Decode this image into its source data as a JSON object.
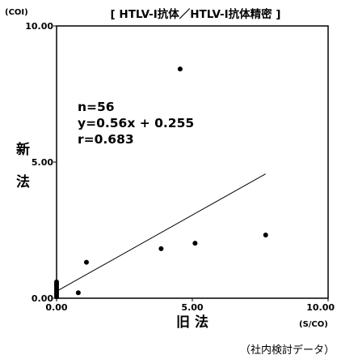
{
  "chart_data": {
    "type": "scatter",
    "title": "[ HTLV-I抗体／HTLV-I抗体精密 ]",
    "xlabel": "旧 法",
    "ylabel": "新\n法",
    "x_unit": "(S/CO)",
    "y_unit": "(COI)",
    "xlim": [
      0,
      10
    ],
    "ylim": [
      0,
      10
    ],
    "x_ticks": [
      "0.00",
      "5.00",
      "10.00"
    ],
    "y_ticks": [
      "0.00",
      "5.00",
      "10.00"
    ],
    "grid": false,
    "annotations": [
      "n=56",
      "y=0.56x + 0.255",
      "r=0.683"
    ],
    "regression": {
      "slope": 0.56,
      "intercept": 0.255,
      "x_range": [
        0,
        7.7
      ]
    },
    "series": [
      {
        "points": [
          {
            "x": 4.55,
            "y": 8.42
          },
          {
            "x": 7.7,
            "y": 2.32
          },
          {
            "x": 5.1,
            "y": 2.02
          },
          {
            "x": 3.85,
            "y": 1.82
          },
          {
            "x": 1.1,
            "y": 1.32
          },
          {
            "x": 0.8,
            "y": 0.2
          },
          {
            "x": 0.0,
            "y": 0.05
          },
          {
            "x": 0.0,
            "y": 0.12
          },
          {
            "x": 0.0,
            "y": 0.18
          },
          {
            "x": 0.0,
            "y": 0.24
          },
          {
            "x": 0.0,
            "y": 0.3
          },
          {
            "x": 0.0,
            "y": 0.36
          },
          {
            "x": 0.0,
            "y": 0.42
          },
          {
            "x": 0.0,
            "y": 0.48
          },
          {
            "x": 0.0,
            "y": 0.54
          },
          {
            "x": 0.0,
            "y": 0.6
          }
        ]
      }
    ],
    "footnote": "（社内検討データ）"
  }
}
